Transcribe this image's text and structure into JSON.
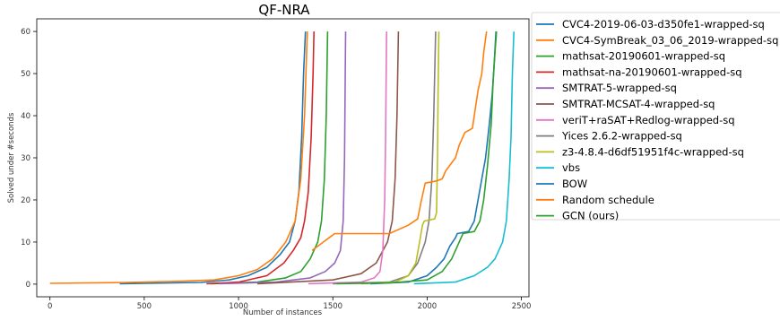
{
  "chart_data": {
    "type": "line",
    "title": "QF-NRA",
    "xlabel": "Number of instances",
    "ylabel": "Solved under #seconds",
    "xlim": [
      -70,
      2540
    ],
    "ylim": [
      -3,
      63
    ],
    "xticks": [
      0,
      500,
      1000,
      1500,
      2000,
      2500
    ],
    "yticks": [
      0,
      10,
      20,
      30,
      40,
      50,
      60
    ],
    "grid": false,
    "legend_position": "outside-right",
    "series": [
      {
        "name": "CVC4-2019-06-03-d350fe1-wrapped-sq",
        "color": "#1f77b4",
        "points": [
          [
            370,
            0.1
          ],
          [
            800,
            0.4
          ],
          [
            950,
            1.0
          ],
          [
            1050,
            2.0
          ],
          [
            1150,
            4.0
          ],
          [
            1220,
            7.0
          ],
          [
            1270,
            10.0
          ],
          [
            1300,
            15.0
          ],
          [
            1320,
            22.0
          ],
          [
            1335,
            35.0
          ],
          [
            1345,
            50.0
          ],
          [
            1355,
            60.0
          ]
        ]
      },
      {
        "name": "CVC4-SymBreak_03_06_2019-wrapped-sq",
        "color": "#ff7f0e",
        "points": [
          [
            0,
            0.2
          ],
          [
            400,
            0.4
          ],
          [
            700,
            0.7
          ],
          [
            870,
            1.0
          ],
          [
            1000,
            2.0
          ],
          [
            1100,
            3.5
          ],
          [
            1180,
            6.0
          ],
          [
            1250,
            10.0
          ],
          [
            1300,
            15.0
          ],
          [
            1330,
            25.0
          ],
          [
            1350,
            40.0
          ],
          [
            1365,
            60.0
          ]
        ]
      },
      {
        "name": "mathsat-20190601-wrapped-sq",
        "color": "#2ca02c",
        "points": [
          [
            850,
            0.1
          ],
          [
            1100,
            0.5
          ],
          [
            1250,
            1.5
          ],
          [
            1330,
            3.0
          ],
          [
            1380,
            6.0
          ],
          [
            1420,
            10.0
          ],
          [
            1440,
            15.0
          ],
          [
            1455,
            25.0
          ],
          [
            1465,
            40.0
          ],
          [
            1472,
            60.0
          ]
        ]
      },
      {
        "name": "mathsat-na-20190601-wrapped-sq",
        "color": "#d62728",
        "points": [
          [
            830,
            0.1
          ],
          [
            1000,
            0.5
          ],
          [
            1150,
            2.0
          ],
          [
            1240,
            5.0
          ],
          [
            1290,
            8.0
          ],
          [
            1330,
            11.0
          ],
          [
            1350,
            15.0
          ],
          [
            1370,
            22.0
          ],
          [
            1385,
            35.0
          ],
          [
            1395,
            50.0
          ],
          [
            1400,
            60.0
          ]
        ]
      },
      {
        "name": "SMTRAT-5-wrapped-sq",
        "color": "#9467bd",
        "points": [
          [
            900,
            0.1
          ],
          [
            1200,
            0.5
          ],
          [
            1380,
            1.5
          ],
          [
            1460,
            3.0
          ],
          [
            1510,
            5.0
          ],
          [
            1540,
            8.0
          ],
          [
            1555,
            15.0
          ],
          [
            1562,
            30.0
          ],
          [
            1568,
            60.0
          ]
        ]
      },
      {
        "name": "SMTRAT-MCSAT-4-wrapped-sq",
        "color": "#8c564b",
        "points": [
          [
            1100,
            0.1
          ],
          [
            1500,
            1.0
          ],
          [
            1650,
            2.5
          ],
          [
            1730,
            5.0
          ],
          [
            1790,
            10.0
          ],
          [
            1815,
            15.0
          ],
          [
            1830,
            25.0
          ],
          [
            1840,
            40.0
          ],
          [
            1848,
            60.0
          ]
        ]
      },
      {
        "name": "veriT+raSAT+Redlog-wrapped-sq",
        "color": "#e377c2",
        "points": [
          [
            1370,
            0.1
          ],
          [
            1650,
            0.5
          ],
          [
            1720,
            1.5
          ],
          [
            1750,
            3.0
          ],
          [
            1765,
            8.0
          ],
          [
            1775,
            20.0
          ],
          [
            1780,
            35.0
          ],
          [
            1785,
            60.0
          ]
        ]
      },
      {
        "name": "Yices 2.6.2-wrapped-sq",
        "color": "#7f7f7f",
        "points": [
          [
            1500,
            0.1
          ],
          [
            1800,
            0.5
          ],
          [
            1900,
            2.0
          ],
          [
            1950,
            5.0
          ],
          [
            1990,
            10.0
          ],
          [
            2010,
            15.0
          ],
          [
            2025,
            25.0
          ],
          [
            2035,
            40.0
          ],
          [
            2045,
            60.0
          ]
        ]
      },
      {
        "name": "z3-4.8.4-d6df51951f4c-wrapped-sq",
        "color": "#bcbd22",
        "points": [
          [
            1650,
            0.1
          ],
          [
            1830,
            0.5
          ],
          [
            1900,
            2.0
          ],
          [
            1940,
            5.0
          ],
          [
            1960,
            10.0
          ],
          [
            1975,
            14.0
          ],
          [
            1985,
            15.0
          ],
          [
            2040,
            15.5
          ],
          [
            2050,
            17.0
          ],
          [
            2055,
            30.0
          ],
          [
            2058,
            45.0
          ],
          [
            2062,
            60.0
          ]
        ]
      },
      {
        "name": "vbs",
        "color": "#17becf",
        "points": [
          [
            1930,
            0.1
          ],
          [
            2150,
            0.5
          ],
          [
            2250,
            2.0
          ],
          [
            2320,
            4.0
          ],
          [
            2360,
            6.0
          ],
          [
            2400,
            10.0
          ],
          [
            2420,
            15.0
          ],
          [
            2435,
            25.0
          ],
          [
            2445,
            35.0
          ],
          [
            2452,
            50.0
          ],
          [
            2460,
            60.0
          ]
        ]
      },
      {
        "name": "BOW",
        "color": "#1f77b4",
        "points": [
          [
            1700,
            0.1
          ],
          [
            1900,
            0.5
          ],
          [
            2000,
            2.0
          ],
          [
            2050,
            4.0
          ],
          [
            2090,
            6.0
          ],
          [
            2120,
            9.0
          ],
          [
            2150,
            11.0
          ],
          [
            2160,
            12.0
          ],
          [
            2220,
            12.5
          ],
          [
            2250,
            15.0
          ],
          [
            2270,
            20.0
          ],
          [
            2290,
            25.0
          ],
          [
            2310,
            30.0
          ],
          [
            2330,
            38.0
          ],
          [
            2345,
            45.0
          ],
          [
            2355,
            52.0
          ],
          [
            2365,
            60.0
          ]
        ]
      },
      {
        "name": "Random schedule",
        "color": "#ff7f0e",
        "points": [
          [
            1390,
            8.0
          ],
          [
            1420,
            9.0
          ],
          [
            1450,
            10.0
          ],
          [
            1480,
            11.0
          ],
          [
            1510,
            12.0
          ],
          [
            1800,
            12.0
          ],
          [
            1850,
            13.0
          ],
          [
            1900,
            14.0
          ],
          [
            1950,
            15.5
          ],
          [
            1970,
            20.0
          ],
          [
            1990,
            24.0
          ],
          [
            2050,
            24.5
          ],
          [
            2080,
            25.0
          ],
          [
            2100,
            27.0
          ],
          [
            2150,
            30.0
          ],
          [
            2170,
            33.0
          ],
          [
            2200,
            36.0
          ],
          [
            2240,
            37.0
          ],
          [
            2250,
            40.0
          ],
          [
            2270,
            46.0
          ],
          [
            2290,
            50.0
          ],
          [
            2300,
            55.0
          ],
          [
            2315,
            60.0
          ]
        ]
      },
      {
        "name": "GCN (ours)",
        "color": "#2ca02c",
        "points": [
          [
            1520,
            0.1
          ],
          [
            1800,
            0.3
          ],
          [
            2000,
            1.0
          ],
          [
            2080,
            3.0
          ],
          [
            2130,
            6.0
          ],
          [
            2170,
            10.0
          ],
          [
            2190,
            12.0
          ],
          [
            2250,
            12.5
          ],
          [
            2280,
            15.0
          ],
          [
            2300,
            20.0
          ],
          [
            2320,
            28.0
          ],
          [
            2340,
            38.0
          ],
          [
            2350,
            48.0
          ],
          [
            2360,
            55.0
          ],
          [
            2368,
            60.0
          ]
        ]
      }
    ]
  }
}
